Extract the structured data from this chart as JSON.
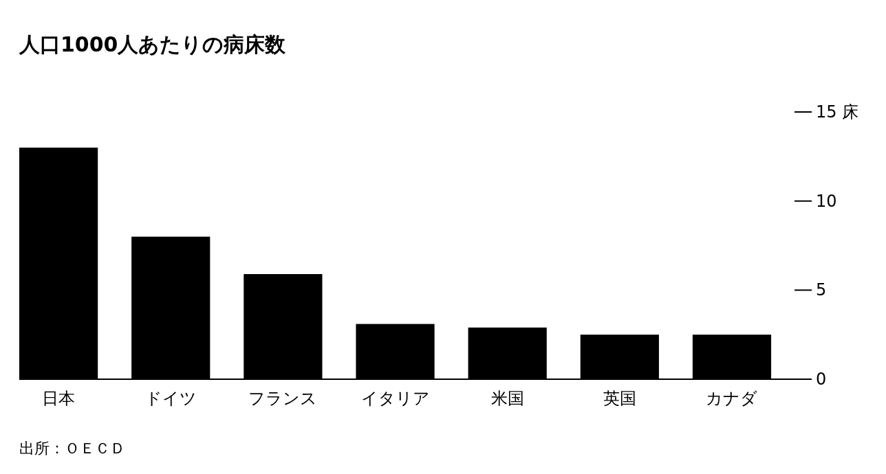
{
  "chart_data": {
    "type": "bar",
    "title": "人口1000人あたりの病床数",
    "categories": [
      "日本",
      "ドイツ",
      "フランス",
      "イタリア",
      "米国",
      "英国",
      "カナダ"
    ],
    "values": [
      13.0,
      8.0,
      5.9,
      3.1,
      2.9,
      2.5,
      2.5
    ],
    "color": "#000000",
    "ylim": [
      0,
      15
    ],
    "yticks": [
      0,
      5,
      10,
      {
        "value": 15,
        "label": "15 床"
      }
    ],
    "grid": false,
    "annotations": [
      "出所：ＯＥＣＤ"
    ]
  }
}
